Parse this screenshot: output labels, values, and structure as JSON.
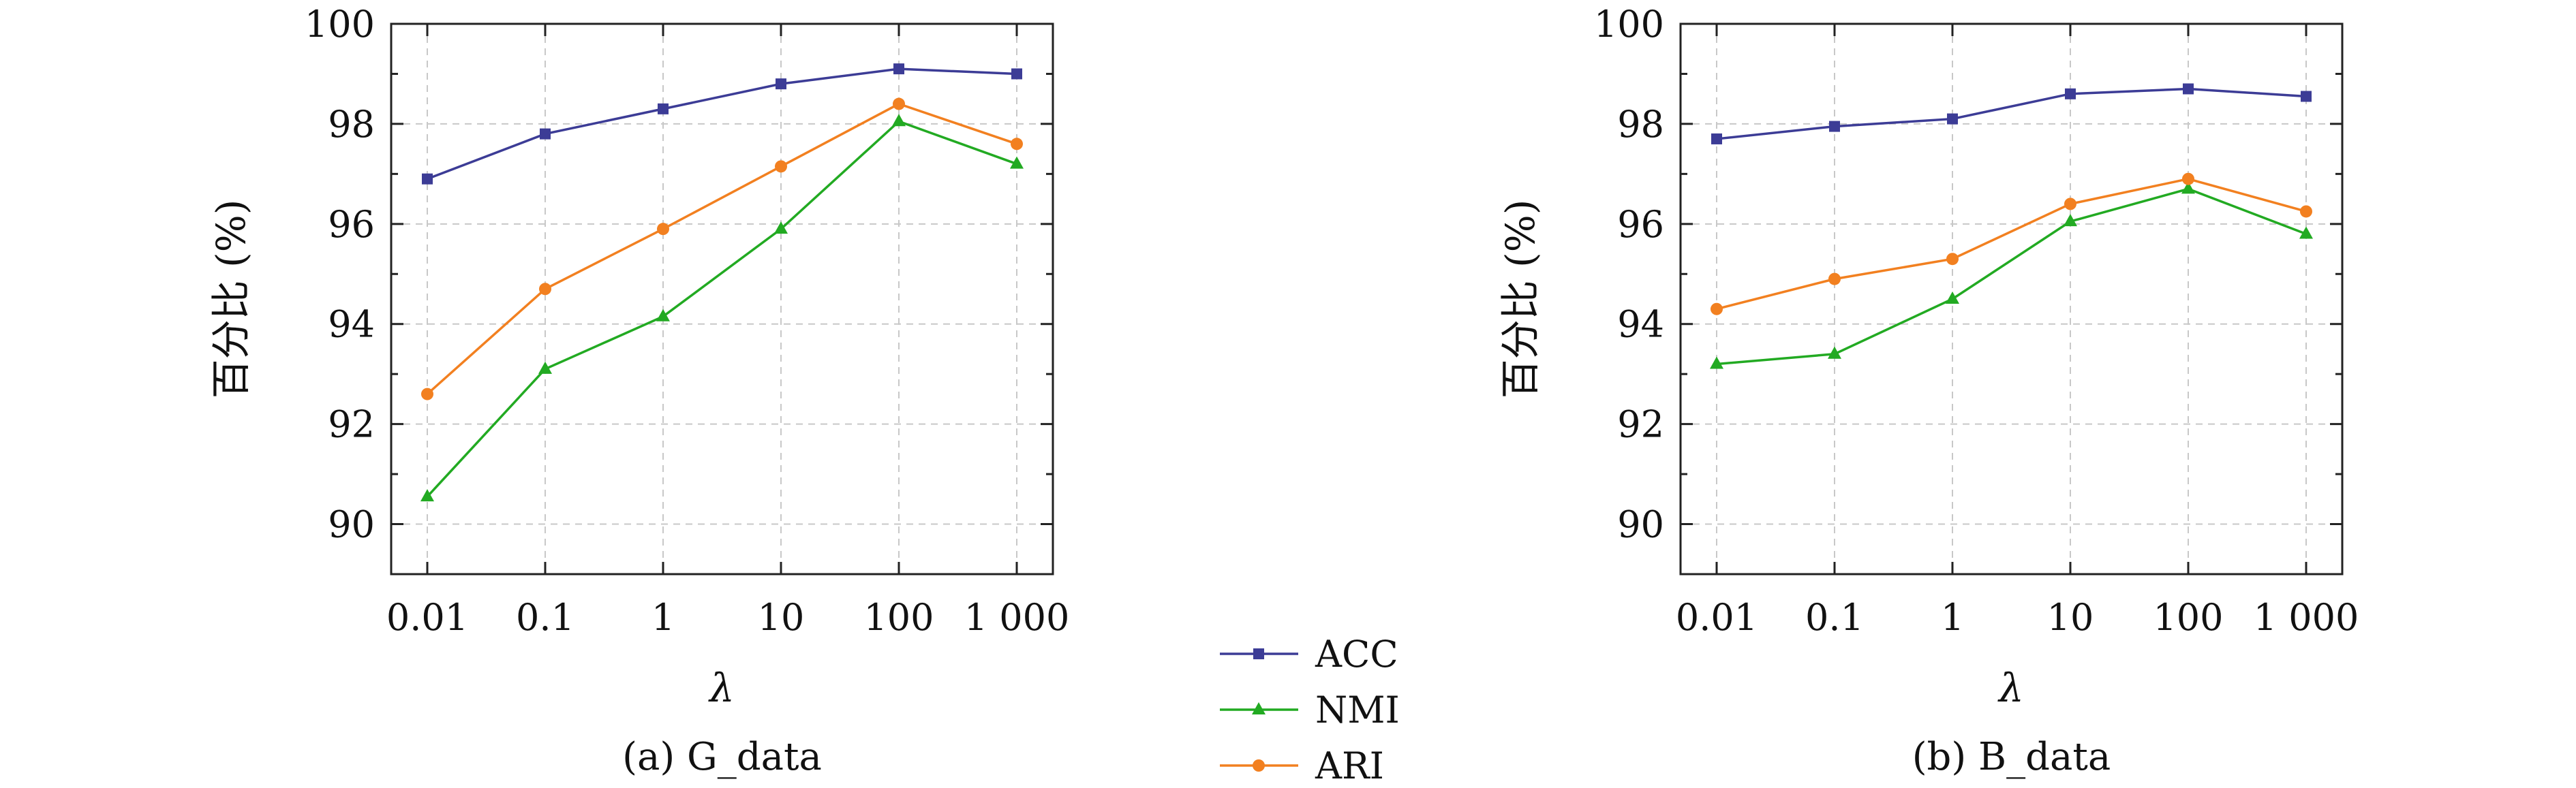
{
  "legend": [
    {
      "name": "ACC",
      "color": "#3c3c96",
      "marker": "square"
    },
    {
      "name": "NMI",
      "color": "#22aa22",
      "marker": "triangle"
    },
    {
      "name": "ARI",
      "color": "#f28020",
      "marker": "circle"
    }
  ],
  "chart_data": [
    {
      "type": "line",
      "caption": "(a) G_data",
      "xlabel": "λ",
      "ylabel": "百分比 (%)",
      "categories": [
        "0.01",
        "0.1",
        "1",
        "10",
        "100",
        "1 000"
      ],
      "ylim": [
        89,
        100
      ],
      "yticks": [
        "90",
        "92",
        "94",
        "96",
        "98",
        "100"
      ],
      "grid": true,
      "series": [
        {
          "name": "ACC",
          "values": [
            96.9,
            97.8,
            98.3,
            98.8,
            99.1,
            99.0
          ]
        },
        {
          "name": "NMI",
          "values": [
            90.55,
            93.1,
            94.15,
            95.9,
            98.05,
            97.2
          ]
        },
        {
          "name": "ARI",
          "values": [
            92.6,
            94.7,
            95.9,
            97.15,
            98.4,
            97.6
          ]
        }
      ]
    },
    {
      "type": "line",
      "caption": "(b) B_data",
      "xlabel": "λ",
      "ylabel": "百分比 (%)",
      "categories": [
        "0.01",
        "0.1",
        "1",
        "10",
        "100",
        "1 000"
      ],
      "ylim": [
        89,
        100
      ],
      "yticks": [
        "90",
        "92",
        "94",
        "96",
        "98",
        "100"
      ],
      "grid": true,
      "series": [
        {
          "name": "ACC",
          "values": [
            97.7,
            97.95,
            98.1,
            98.6,
            98.7,
            98.55
          ]
        },
        {
          "name": "NMI",
          "values": [
            93.2,
            93.4,
            94.5,
            96.05,
            96.7,
            95.8
          ]
        },
        {
          "name": "ARI",
          "values": [
            94.3,
            94.9,
            95.3,
            96.4,
            96.9,
            96.25
          ]
        }
      ]
    }
  ]
}
